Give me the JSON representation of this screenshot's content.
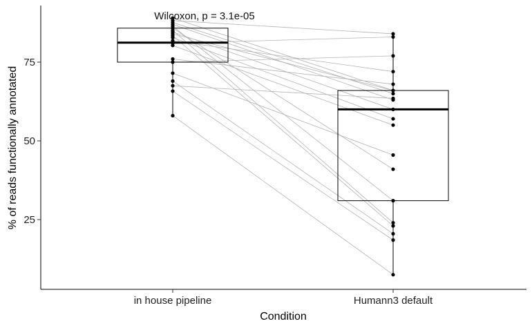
{
  "chart_data": {
    "type": "box",
    "xlabel": "Condition",
    "ylabel": "% of reads functionally annotated",
    "categories": [
      "in house pipeline",
      "Humann3 default"
    ],
    "yticks": [
      25,
      50,
      75
    ],
    "ylim": [
      3,
      94
    ],
    "annotation": "Wilcoxon, p = 3.1e-05",
    "grid": false,
    "legend": "none",
    "boxes": [
      {
        "category": "in house pipeline",
        "q1": 75.0,
        "median": 81.2,
        "q3": 85.8,
        "whisker_low": 58.0,
        "whisker_high": 89.0
      },
      {
        "category": "Humann3 default",
        "q1": 31.0,
        "median": 60.0,
        "q3": 66.0,
        "whisker_low": 7.5,
        "whisker_high": 84.0
      }
    ],
    "paired_points": [
      {
        "in house pipeline": 89.0,
        "Humann3 default": 66.0
      },
      {
        "in house pipeline": 88.2,
        "Humann3 default": 84.0
      },
      {
        "in house pipeline": 87.6,
        "Humann3 default": 65.0
      },
      {
        "in house pipeline": 87.0,
        "Humann3 default": 63.0
      },
      {
        "in house pipeline": 86.4,
        "Humann3 default": 31.0
      },
      {
        "in house pipeline": 85.8,
        "Humann3 default": 41.0
      },
      {
        "in house pipeline": 85.1,
        "Humann3 default": 24.0
      },
      {
        "in house pipeline": 84.6,
        "Humann3 default": 60.0
      },
      {
        "in house pipeline": 84.0,
        "Humann3 default": 66.0
      },
      {
        "in house pipeline": 83.4,
        "Humann3 default": 23.0
      },
      {
        "in house pipeline": 82.8,
        "Humann3 default": 57.0
      },
      {
        "in house pipeline": 81.8,
        "Humann3 default": 72.0
      },
      {
        "in house pipeline": 81.0,
        "Humann3 default": 83.0
      },
      {
        "in house pipeline": 80.3,
        "Humann3 default": 55.0
      },
      {
        "in house pipeline": 76.0,
        "Humann3 default": 68.0
      },
      {
        "in house pipeline": 75.0,
        "Humann3 default": 77.0
      },
      {
        "in house pipeline": 71.5,
        "Humann3 default": 45.5
      },
      {
        "in house pipeline": 69.0,
        "Humann3 default": 20.5
      },
      {
        "in house pipeline": 67.5,
        "Humann3 default": 63.5
      },
      {
        "in house pipeline": 65.8,
        "Humann3 default": 18.5
      },
      {
        "in house pipeline": 58.0,
        "Humann3 default": 7.5
      }
    ]
  }
}
